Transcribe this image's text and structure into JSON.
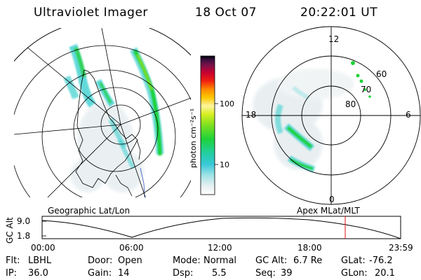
{
  "header": {
    "instrument": "Ultraviolet Imager",
    "date": "18 Oct 07",
    "time": "20:22:01 UT"
  },
  "colorbar": {
    "unit_label": "photon cm⁻²s⁻¹",
    "ticks": [
      "100",
      "10"
    ],
    "scale": "log"
  },
  "left_map": {
    "label": "Geographic Lat/Lon",
    "projection": "geographic"
  },
  "right_map": {
    "label": "Apex MLat/MLT",
    "mlt_labels": {
      "top": "12",
      "left": "18",
      "right": "6",
      "bottom": "0"
    },
    "mlat_labels": [
      "60",
      "70",
      "80"
    ]
  },
  "altitude_plot": {
    "ylabel": "GC Alt",
    "yticks": [
      "9.0",
      "1.8"
    ],
    "xticks": [
      "00:00",
      "06:00",
      "12:00",
      "18:00",
      "23:59"
    ],
    "marker_time": "20:22",
    "marker_color": "#e01010"
  },
  "status": {
    "flt_label": "Flt:",
    "flt_value": "LBHL",
    "ip_label": "IP:",
    "ip_value": "36.0",
    "door_label": "Door:",
    "door_value": "Open",
    "gain_label": "Gain:",
    "gain_value": "14",
    "mode_label": "Mode:",
    "mode_value": "Normal",
    "dsp_label": "Dsp:",
    "dsp_value": "5.5",
    "gcalt_label": "GC Alt:",
    "gcalt_value": "6.7 Re",
    "seq_label": "Seq:",
    "seq_value": "39",
    "glat_label": "GLat:",
    "glat_value": "-76.2",
    "glon_label": "GLon:",
    "glon_value": "20.1"
  }
}
